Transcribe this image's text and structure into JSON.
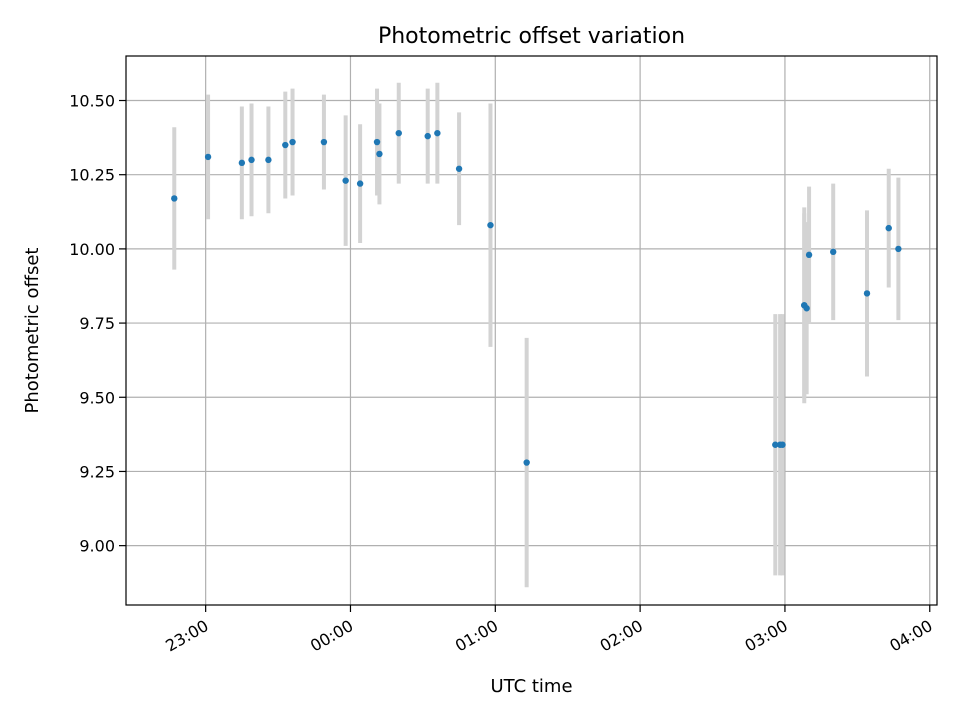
{
  "chart_data": {
    "type": "scatter",
    "title": "Photometric offset variation",
    "xlabel": "UTC time",
    "ylabel": "Photometric offset",
    "x_range": [
      "22:27",
      "04:03"
    ],
    "ylim": [
      8.8,
      10.65
    ],
    "grid": true,
    "x_ticks": [
      "23:00",
      "00:00",
      "01:00",
      "02:00",
      "03:00",
      "04:00"
    ],
    "y_ticks": [
      "9.00",
      "9.25",
      "9.50",
      "9.75",
      "10.00",
      "10.25",
      "10.50"
    ],
    "y_tick_values": [
      9.0,
      9.25,
      9.5,
      9.75,
      10.0,
      10.25,
      10.5
    ],
    "colors": {
      "point": "#1f77b4",
      "errorbar": "#d3d3d3",
      "grid": "#b0b0b0"
    },
    "series": [
      {
        "points": [
          {
            "time": "22:47",
            "y": 10.17,
            "err": 0.24
          },
          {
            "time": "23:01",
            "y": 10.31,
            "err": 0.21
          },
          {
            "time": "23:15",
            "y": 10.29,
            "err": 0.19
          },
          {
            "time": "23:19",
            "y": 10.3,
            "err": 0.19
          },
          {
            "time": "23:26",
            "y": 10.3,
            "err": 0.18
          },
          {
            "time": "23:33",
            "y": 10.35,
            "err": 0.18
          },
          {
            "time": "23:36",
            "y": 10.36,
            "err": 0.18
          },
          {
            "time": "23:49",
            "y": 10.36,
            "err": 0.16
          },
          {
            "time": "23:58",
            "y": 10.23,
            "err": 0.22
          },
          {
            "time": "00:04",
            "y": 10.22,
            "err": 0.2
          },
          {
            "time": "00:11",
            "y": 10.36,
            "err": 0.18
          },
          {
            "time": "00:12",
            "y": 10.32,
            "err": 0.17
          },
          {
            "time": "00:20",
            "y": 10.39,
            "err": 0.17
          },
          {
            "time": "00:32",
            "y": 10.38,
            "err": 0.16
          },
          {
            "time": "00:36",
            "y": 10.39,
            "err": 0.17
          },
          {
            "time": "00:45",
            "y": 10.27,
            "err": 0.19
          },
          {
            "time": "00:58",
            "y": 10.08,
            "err": 0.41
          },
          {
            "time": "01:13",
            "y": 9.28,
            "err": 0.42
          },
          {
            "time": "02:56",
            "y": 9.34,
            "err": 0.44
          },
          {
            "time": "02:58",
            "y": 9.34,
            "err": 0.44
          },
          {
            "time": "02:59",
            "y": 9.34,
            "err": 0.44
          },
          {
            "time": "03:08",
            "y": 9.81,
            "err": 0.33
          },
          {
            "time": "03:08",
            "y": 9.81,
            "err": 0.31
          },
          {
            "time": "03:09",
            "y": 9.8,
            "err": 0.29
          },
          {
            "time": "03:10",
            "y": 9.98,
            "err": 0.23
          },
          {
            "time": "03:20",
            "y": 9.99,
            "err": 0.23
          },
          {
            "time": "03:34",
            "y": 9.85,
            "err": 0.28
          },
          {
            "time": "03:43",
            "y": 10.07,
            "err": 0.2
          },
          {
            "time": "03:47",
            "y": 10.0,
            "err": 0.24
          }
        ]
      }
    ]
  }
}
